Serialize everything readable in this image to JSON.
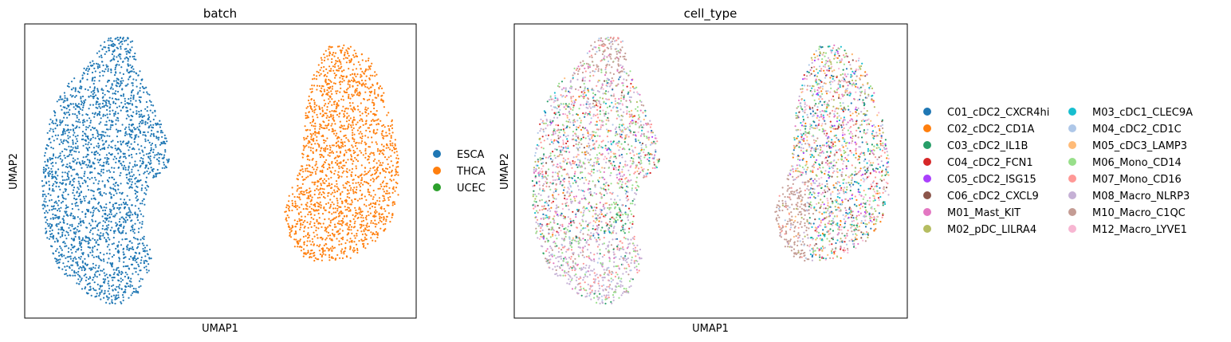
{
  "chart_data": [
    {
      "type": "scatter",
      "title": "batch",
      "xlabel": "UMAP1",
      "ylabel": "UMAP2",
      "grid": false,
      "ticks": "none",
      "legend_placement": "right",
      "series": [
        {
          "name": "ESCA",
          "color": "#1f77b4"
        },
        {
          "name": "THCA",
          "color": "#ff7f0e"
        },
        {
          "name": "UCEC",
          "color": "#2ca02c"
        }
      ]
    },
    {
      "type": "scatter",
      "title": "cell_type",
      "xlabel": "UMAP1",
      "ylabel": "UMAP2",
      "grid": false,
      "ticks": "none",
      "legend_placement": "right",
      "series": [
        {
          "name": "C01_cDC2_CXCR4hi",
          "color": "#1f77b4"
        },
        {
          "name": "C02_cDC2_CD1A",
          "color": "#ff7f0e"
        },
        {
          "name": "C03_cDC2_IL1B",
          "color": "#279e68"
        },
        {
          "name": "C04_cDC2_FCN1",
          "color": "#d62728"
        },
        {
          "name": "C05_cDC2_ISG15",
          "color": "#aa40fc"
        },
        {
          "name": "C06_cDC2_CXCL9",
          "color": "#8c564b"
        },
        {
          "name": "M01_Mast_KIT",
          "color": "#e377c2"
        },
        {
          "name": "M02_pDC_LILRA4",
          "color": "#b5bd61"
        },
        {
          "name": "M03_cDC1_CLEC9A",
          "color": "#17becf"
        },
        {
          "name": "M04_cDC2_CD1C",
          "color": "#aec7e8"
        },
        {
          "name": "M05_cDC3_LAMP3",
          "color": "#ffbb78"
        },
        {
          "name": "M06_Mono_CD14",
          "color": "#98df8a"
        },
        {
          "name": "M07_Mono_CD16",
          "color": "#ff9896"
        },
        {
          "name": "M08_Macro_NLRP3",
          "color": "#c5b0d5"
        },
        {
          "name": "M10_Macro_C1QC",
          "color": "#c49c94"
        },
        {
          "name": "M12_Macro_LYVE1",
          "color": "#f7b6d2"
        }
      ]
    }
  ]
}
